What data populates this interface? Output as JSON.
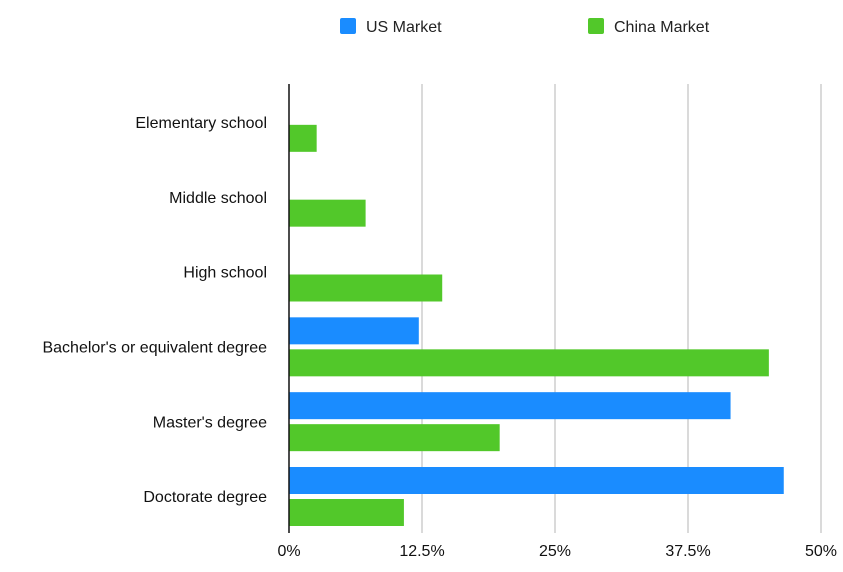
{
  "chart_data": {
    "type": "bar",
    "orientation": "horizontal",
    "categories": [
      "Elementary school",
      "Middle school",
      "High school",
      "Bachelor's or equivalent degree",
      "Master's degree",
      "Doctorate degree"
    ],
    "series": [
      {
        "name": "US Market",
        "color": "#1a8cff",
        "values": [
          0,
          0,
          0,
          12.2,
          41.5,
          46.5
        ]
      },
      {
        "name": "China Market",
        "color": "#52c82a",
        "values": [
          2.6,
          7.2,
          14.4,
          45.1,
          19.8,
          10.8
        ]
      }
    ],
    "x_ticks": [
      "0%",
      "12.5%",
      "25%",
      "37.5%",
      "50%"
    ],
    "xlim": [
      0,
      50
    ],
    "grid": true,
    "legend_position": "top-center"
  }
}
